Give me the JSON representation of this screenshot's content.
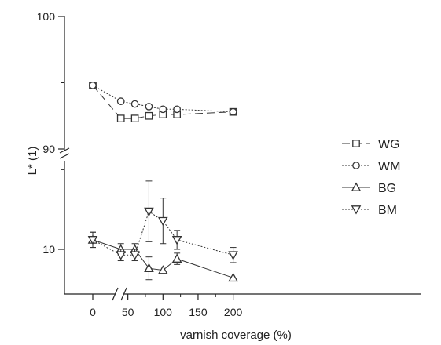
{
  "chart_data": {
    "type": "scatter",
    "title": "",
    "xlabel": "varnish coverage (%)",
    "ylabel": "L* (1)",
    "x_ticks": [
      "0",
      "50",
      "100",
      "150",
      "200"
    ],
    "y_ticks_upper": [
      "100",
      "90"
    ],
    "y_ticks_lower": [
      "10"
    ],
    "axis_break": {
      "x": [
        0,
        40
      ],
      "y": [
        90,
        12
      ]
    },
    "legend_position": "right",
    "grid": false,
    "series": [
      {
        "name": "WG",
        "marker": "square",
        "line": "dash",
        "x": [
          0,
          40,
          60,
          80,
          100,
          120,
          200
        ],
        "y": [
          94.8,
          92.3,
          92.3,
          92.5,
          92.6,
          92.6,
          92.8
        ],
        "err": [
          0,
          0,
          0,
          0,
          0,
          0,
          0
        ]
      },
      {
        "name": "WM",
        "marker": "circle",
        "line": "dot",
        "x": [
          0,
          40,
          60,
          80,
          100,
          120,
          200
        ],
        "y": [
          94.8,
          93.6,
          93.4,
          93.2,
          93.0,
          93.0,
          92.8
        ],
        "err": [
          0,
          0,
          0,
          0,
          0,
          0,
          0
        ]
      },
      {
        "name": "BG",
        "marker": "triangle-up",
        "line": "solid",
        "x": [
          0,
          40,
          60,
          80,
          100,
          120,
          200
        ],
        "y": [
          10.5,
          10.0,
          10.0,
          9.0,
          8.9,
          9.5,
          8.5
        ],
        "err": [
          0.4,
          0.3,
          0.3,
          0.6,
          0,
          0.3,
          0
        ]
      },
      {
        "name": "BM",
        "marker": "triangle-down",
        "line": "dot",
        "x": [
          0,
          40,
          60,
          80,
          100,
          120,
          200
        ],
        "y": [
          10.5,
          9.7,
          9.7,
          12.0,
          11.5,
          10.5,
          9.7
        ],
        "err": [
          0.4,
          0.3,
          0.3,
          1.6,
          1.2,
          0.5,
          0.4
        ]
      }
    ]
  },
  "colors": {
    "axis": "#222222",
    "series": "#333333"
  }
}
